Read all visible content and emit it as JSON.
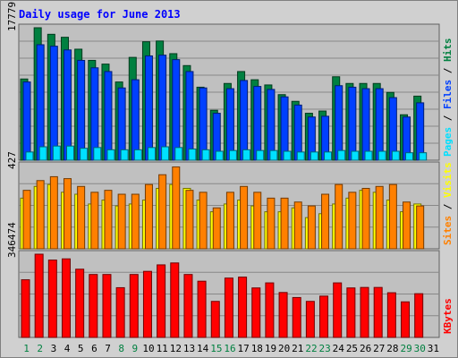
{
  "title": "Daily usage for June 2013",
  "colors": {
    "hits": "#008040",
    "files": "#0040ff",
    "pages": "#00e0ff",
    "visits": "#ffff00",
    "sites": "#ff8000",
    "kbytes": "#ff0000",
    "weekend": "#008040",
    "weekday": "#000000"
  },
  "labels": {
    "top": [
      "Pages",
      "Files",
      "Hits"
    ],
    "mid": [
      "Sites",
      "Visits"
    ],
    "bottom": [
      "KBytes"
    ],
    "separator": " / "
  },
  "chart_data": {
    "type": "bar",
    "title": "Daily usage for June 2013",
    "days": [
      "1",
      "2",
      "3",
      "4",
      "5",
      "6",
      "7",
      "8",
      "9",
      "10",
      "11",
      "12",
      "13",
      "14",
      "15",
      "16",
      "17",
      "18",
      "19",
      "20",
      "21",
      "22",
      "23",
      "24",
      "25",
      "26",
      "27",
      "28",
      "29",
      "30",
      "31"
    ],
    "weekend_days": [
      "1",
      "2",
      "8",
      "9",
      "15",
      "16",
      "22",
      "23",
      "29",
      "30"
    ],
    "panels": [
      {
        "name": "requests",
        "ymax": 17779,
        "tick_label": "17779",
        "series": [
          {
            "name": "Hits",
            "values": [
              10900,
              17779,
              16900,
              16500,
              14900,
              13400,
              12900,
              10500,
              13800,
              15900,
              16000,
              14300,
              12700,
              9800,
              6700,
              10300,
              11900,
              10800,
              10100,
              8800,
              7900,
              6300,
              6600,
              11200,
              10300,
              10300,
              10300,
              9100,
              6100,
              8600,
              0
            ]
          },
          {
            "name": "Files",
            "values": [
              10500,
              15500,
              15300,
              14800,
              13400,
              12400,
              11900,
              9700,
              10800,
              14000,
              14100,
              13500,
              11900,
              9700,
              6300,
              9600,
              10700,
              9900,
              9500,
              8500,
              7400,
              5800,
              5900,
              10000,
              9800,
              9600,
              9600,
              8400,
              5800,
              7700,
              0
            ]
          },
          {
            "name": "Pages",
            "values": [
              1100,
              1800,
              1900,
              1900,
              1600,
              1700,
              1400,
              1400,
              1400,
              1700,
              1800,
              1700,
              1500,
              1400,
              1200,
              1300,
              1400,
              1300,
              1300,
              1200,
              1100,
              1100,
              1100,
              1300,
              1200,
              1200,
              1200,
              1200,
              1000,
              1000,
              0
            ]
          }
        ]
      },
      {
        "name": "visitors",
        "ymax": 427,
        "tick_label": "427",
        "series": [
          {
            "name": "Visits",
            "values": [
              260,
              320,
              330,
              290,
              280,
              230,
              250,
              220,
              230,
              250,
              310,
              330,
              310,
              250,
              190,
              230,
              250,
              220,
              190,
              190,
              210,
              160,
              180,
              230,
              260,
              300,
              290,
              250,
              190,
              230,
              0
            ]
          },
          {
            "name": "Sites",
            "values": [
              300,
              350,
              370,
              360,
              320,
              290,
              300,
              280,
              280,
              330,
              380,
              420,
              300,
              290,
              210,
              290,
              320,
              290,
              260,
              260,
              240,
              220,
              280,
              330,
              290,
              310,
              320,
              330,
              240,
              220,
              0
            ]
          }
        ]
      },
      {
        "name": "transfer",
        "ymax": 346474,
        "tick_label": "346474",
        "series": [
          {
            "name": "KBytes",
            "values": [
              240000,
              346474,
              322000,
              327000,
              284000,
              262000,
              262000,
              207000,
              262000,
              275000,
              302000,
              310000,
              262000,
              234000,
              150000,
              247000,
              251000,
              206000,
              227000,
              187000,
              166000,
              150000,
              172000,
              227000,
              206000,
              208000,
              208000,
              186000,
              148000,
              182000,
              0
            ]
          }
        ]
      }
    ]
  }
}
